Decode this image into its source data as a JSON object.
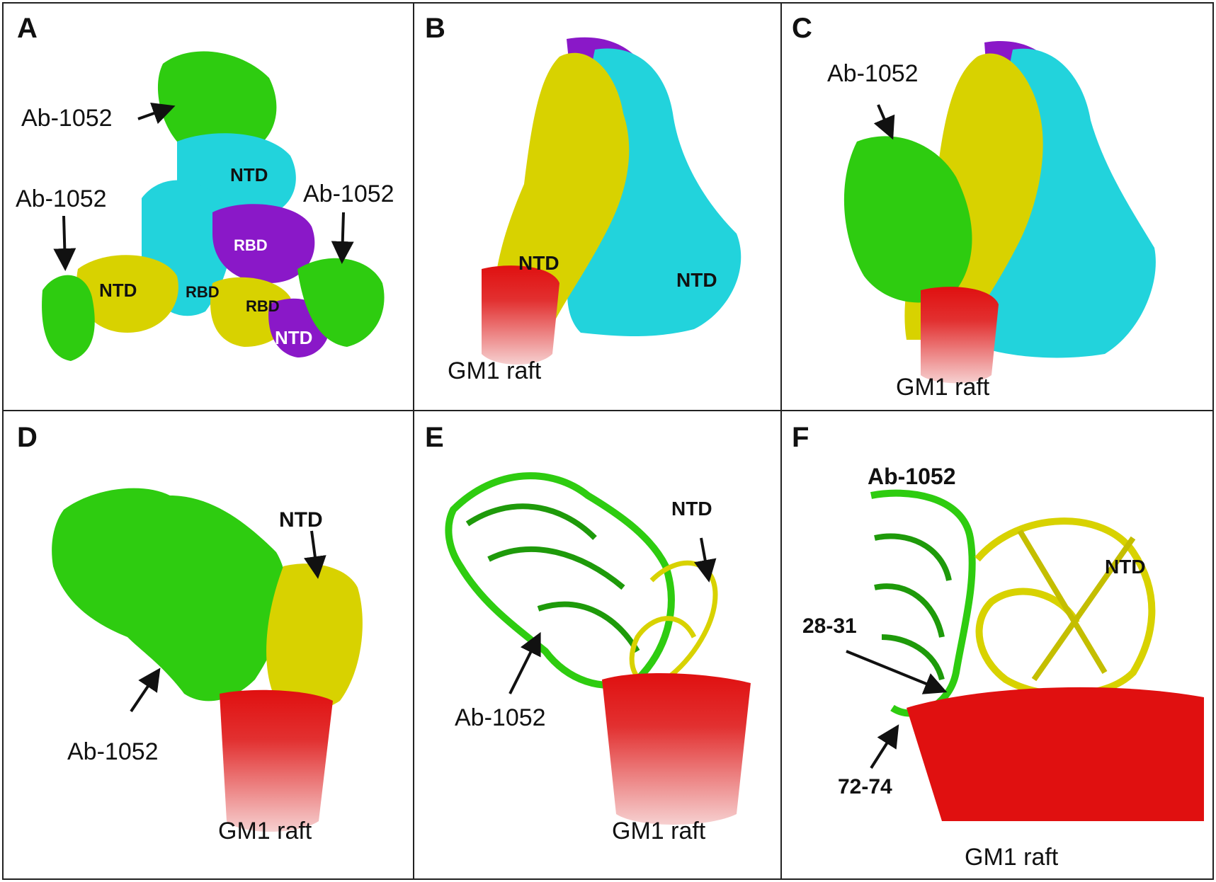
{
  "colors": {
    "antibody": "#2ecc10",
    "antibody_dark": "#1e9a0a",
    "ntd_yellow": "#d8d200",
    "cyan": "#22d3dc",
    "purple": "#8a18c8",
    "raft_red": "#e01010",
    "raft_pink": "#f1b8b8",
    "border": "#222222"
  },
  "panels": {
    "a": {
      "label": "A",
      "ab_top": "Ab-1052",
      "ab_left": "Ab-1052",
      "ab_right": "Ab-1052",
      "ntd_cyan": "NTD",
      "rbd_purple": "RBD",
      "ntd_yellow": "NTD",
      "rbd_cyan": "RBD",
      "rbd_yellow": "RBD",
      "ntd_purple": "NTD"
    },
    "b": {
      "label": "B",
      "ntd_yellow": "NTD",
      "ntd_cyan": "NTD",
      "raft": "GM1 raft"
    },
    "c": {
      "label": "C",
      "ab": "Ab-1052",
      "raft": "GM1 raft"
    },
    "d": {
      "label": "D",
      "ntd": "NTD",
      "ab": "Ab-1052",
      "raft": "GM1 raft"
    },
    "e": {
      "label": "E",
      "ntd": "NTD",
      "ab": "Ab-1052",
      "raft": "GM1 raft"
    },
    "f": {
      "label": "F",
      "ab": "Ab-1052",
      "ntd": "NTD",
      "loop1": "28-31",
      "loop2": "72-74",
      "raft": "GM1 raft"
    }
  }
}
